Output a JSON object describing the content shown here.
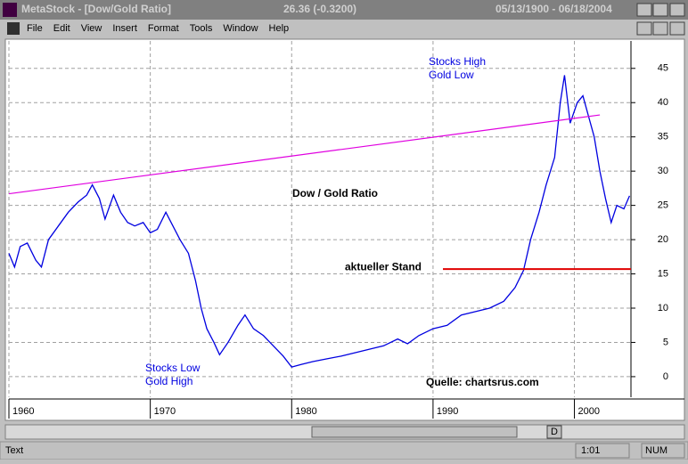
{
  "window": {
    "title": "MetaStock - [Dow/Gold Ratio]",
    "last_value": "26.36 (-0.3200)",
    "date_range": "05/13/1900 - 06/18/2004",
    "menu": [
      "File",
      "Edit",
      "View",
      "Insert",
      "Format",
      "Tools",
      "Window",
      "Help"
    ],
    "status": {
      "text": "Text",
      "time": "1:01",
      "num": "NUM"
    },
    "toolbar_button": "D"
  },
  "chart_data": {
    "type": "line",
    "title": "Dow / Gold Ratio",
    "x": [
      1960,
      1960.4,
      1960.8,
      1961.3,
      1961.9,
      1962.3,
      1962.8,
      1963.5,
      1964.2,
      1964.9,
      1965.5,
      1965.9,
      1966.4,
      1966.8,
      1967.4,
      1967.9,
      1968.4,
      1968.9,
      1969.5,
      1970.0,
      1970.5,
      1971.1,
      1971.6,
      1972.1,
      1972.7,
      1973.2,
      1973.6,
      1974.0,
      1974.5,
      1974.9,
      1975.5,
      1976.2,
      1976.7,
      1977.3,
      1978.0,
      1978.7,
      1979.4,
      1980.0,
      1980.7,
      1981.5,
      1982.5,
      1983.5,
      1984.5,
      1985.5,
      1986.5,
      1987.5,
      1988.2,
      1989.0,
      1990.0,
      1991.0,
      1992.0,
      1993.0,
      1994.0,
      1995.0,
      1995.8,
      1996.4,
      1996.9,
      1997.5,
      1998.0,
      1998.6,
      1999.0,
      1999.3,
      1999.7,
      2000.2,
      2000.6,
      2001.0,
      2001.4,
      2001.8,
      2002.2,
      2002.6,
      2003.0,
      2003.5,
      2003.9
    ],
    "values": [
      18,
      16,
      19,
      19.5,
      17,
      16,
      20,
      22,
      24,
      25.5,
      26.5,
      28,
      26,
      23,
      26.5,
      24,
      22.5,
      22,
      22.5,
      21,
      21.5,
      24,
      22,
      20,
      18,
      14,
      10,
      7,
      5,
      3.2,
      5,
      7.5,
      9,
      7,
      6,
      4.5,
      3,
      1.4,
      1.8,
      2.2,
      2.6,
      3,
      3.5,
      4,
      4.5,
      5.5,
      4.8,
      6,
      7,
      7.5,
      9,
      9.5,
      10,
      11,
      13,
      15.5,
      20,
      24,
      28,
      32,
      40,
      44,
      37,
      40,
      41,
      38,
      35,
      30,
      26,
      22.5,
      25,
      24.5,
      26.4
    ],
    "color": "#0000e0",
    "xlim": [
      1960,
      2004
    ],
    "ylim": [
      -3,
      49
    ],
    "xticks": [
      1960,
      1970,
      1980,
      1990,
      2000
    ],
    "yticks": [
      0,
      5,
      10,
      15,
      20,
      25,
      30,
      35,
      40,
      45
    ],
    "grid": true,
    "trendline": {
      "color": "#e000e0",
      "x": [
        1960,
        2001.8
      ],
      "values": [
        26.7,
        38.2
      ]
    },
    "level_line": {
      "label": "aktueller Stand",
      "color": "#e00000",
      "x": [
        1990.7,
        2004
      ],
      "value": 15.7
    },
    "annotations": [
      "Stocks High",
      "Gold Low",
      "Stocks Low",
      "Gold High",
      "Quelle: chartsrus.com"
    ]
  }
}
